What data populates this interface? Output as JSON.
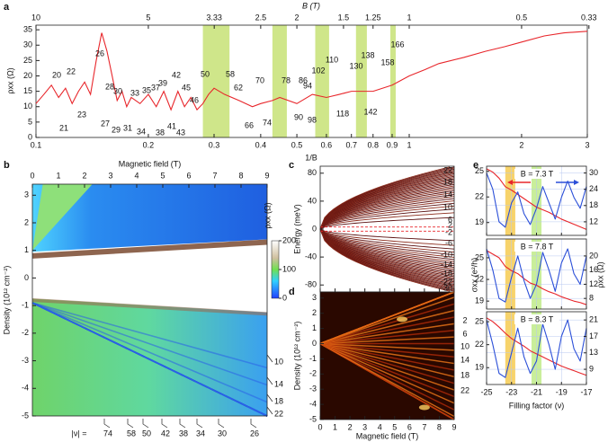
{
  "chart_data": [
    {
      "type": "line",
      "label": "a",
      "xlabel": "1/B",
      "x2label": "B (T)",
      "ylabel": "ρxx (Ω)",
      "log_x": true,
      "xlim": [
        0.1,
        3
      ],
      "xticks": [
        0.1,
        0.2,
        0.3,
        0.4,
        0.5,
        0.6,
        0.7,
        0.8,
        0.9,
        1,
        2,
        3
      ],
      "x2ticks": [
        10,
        5,
        3.33,
        2.5,
        2,
        1.5,
        1.25,
        1,
        0.5,
        0.33
      ],
      "ylim": [
        0,
        36.5
      ],
      "yticks": [
        0,
        5,
        10,
        15,
        20,
        25,
        30,
        35
      ],
      "band_color": "#cfe68a",
      "bands": [
        [
          0.28,
          0.33
        ],
        [
          0.43,
          0.47
        ],
        [
          0.56,
          0.61
        ],
        [
          0.72,
          0.77
        ],
        [
          0.89,
          0.92
        ]
      ],
      "x": [
        0.1,
        0.105,
        0.11,
        0.115,
        0.12,
        0.125,
        0.13,
        0.135,
        0.14,
        0.145,
        0.15,
        0.155,
        0.16,
        0.165,
        0.17,
        0.175,
        0.18,
        0.19,
        0.2,
        0.21,
        0.22,
        0.23,
        0.24,
        0.25,
        0.26,
        0.27,
        0.28,
        0.29,
        0.3,
        0.32,
        0.35,
        0.38,
        0.4,
        0.43,
        0.45,
        0.5,
        0.55,
        0.6,
        0.65,
        0.7,
        0.8,
        0.9,
        1,
        1.1,
        1.2,
        1.4,
        1.6,
        1.8,
        2,
        2.3,
        2.6,
        3
      ],
      "series": [
        {
          "color": "#e8262b",
          "values": [
            11,
            14,
            17,
            13,
            16,
            11,
            15,
            18,
            14,
            25,
            34,
            28,
            20,
            12,
            15,
            10,
            13,
            11,
            14,
            10,
            15,
            9,
            15,
            10,
            13,
            9,
            11,
            14,
            16,
            14,
            12,
            10,
            11,
            12,
            13,
            11,
            14,
            13,
            14,
            15,
            15,
            17,
            20,
            22,
            24,
            26,
            28,
            29.5,
            31,
            33,
            34,
            34.5
          ]
        }
      ],
      "annotations": [
        "20",
        "22",
        "26",
        "28",
        "30",
        "33",
        "35",
        "37",
        "39",
        "42",
        "45",
        "46",
        "50",
        "58",
        "62",
        "66",
        "70",
        "74",
        "78",
        "86",
        "90",
        "94",
        "98",
        "102",
        "110",
        "118",
        "130",
        "138",
        "142",
        "158",
        "166",
        "21",
        "23",
        "27",
        "29",
        "31",
        "34",
        "38",
        "41",
        "43"
      ]
    },
    {
      "type": "heatmap",
      "label": "b",
      "xlabel": "Magnetic field (T)",
      "ylabel": "Density (10¹² cm⁻²)",
      "xlim": [
        0,
        9
      ],
      "xticks": [
        0,
        1,
        2,
        3,
        4,
        5,
        6,
        7,
        8,
        9
      ],
      "ylim": [
        -5,
        3.4
      ],
      "yticks": [
        3,
        2,
        1,
        0,
        -1,
        -2,
        -3,
        -4,
        -5
      ],
      "colorbar_label": "ρxx (Ω)",
      "clim": [
        0,
        200
      ],
      "cticks": [
        0,
        100,
        200
      ],
      "right_labels": [
        "10",
        "14",
        "18",
        "22"
      ],
      "nu_prefix": "|ν| =",
      "nu_labels": [
        "74",
        "58",
        "50",
        "42",
        "38",
        "34",
        "30",
        "26"
      ]
    },
    {
      "type": "fan",
      "label": "c",
      "ylabel": "Energy (meV)",
      "xlim": [
        0,
        9
      ],
      "xticks": [
        0,
        1,
        2,
        3,
        4,
        5,
        6,
        7,
        8,
        9
      ],
      "ylim": [
        -90,
        90
      ],
      "yticks": [
        80,
        40,
        0,
        -40,
        -80
      ],
      "right_labels": [
        "22",
        "18",
        "14",
        "10",
        "6",
        "2",
        "-2",
        "-6",
        "-10",
        "-14",
        "-18",
        "-22",
        "-30"
      ]
    },
    {
      "type": "heatmap",
      "label": "d",
      "xlabel": "Magnetic field (T)",
      "ylabel": "Density (10¹² cm⁻²)",
      "xlim": [
        0,
        9
      ],
      "xticks": [
        0,
        1,
        2,
        3,
        4,
        5,
        6,
        7,
        8,
        9
      ],
      "ylim": [
        -5,
        3.4
      ],
      "yticks": [
        3,
        2,
        1,
        0,
        -1,
        -2,
        -3,
        -4,
        -5
      ],
      "right_labels": [
        "2",
        "6",
        "10",
        "14",
        "18",
        "22"
      ]
    },
    {
      "type": "multi",
      "label": "e",
      "xlabel": "Filling factor (ν)",
      "ylabel": "σxx (e²/h)",
      "y2label": "ρxx (Ω)",
      "xlim": [
        -25,
        -17
      ],
      "xticks": [
        -25,
        -23,
        -21,
        -19,
        -17
      ],
      "grid": true,
      "bands": [
        {
          "range": [
            -23.5,
            -22.7
          ],
          "color": "#f7d36b"
        },
        {
          "range": [
            -21.4,
            -20.6
          ],
          "color": "#c9ee9a"
        }
      ],
      "x": [
        -25,
        -24.5,
        -24,
        -23.5,
        -23,
        -22.5,
        -22,
        -21.5,
        -21,
        -20.5,
        -20,
        -19.5,
        -19,
        -18.5,
        -18,
        -17.5,
        -17
      ],
      "panels": [
        {
          "title": "B = 7.3 T",
          "ylim": [
            17.5,
            25.6
          ],
          "yticks": [
            25,
            22,
            19
          ],
          "y2lim": [
            7,
            32.5
          ],
          "y2ticks": [
            30,
            24,
            18,
            12
          ],
          "series": [
            {
              "color": "#e8262b",
              "values": [
                25.3,
                24.9,
                24.2,
                23.2,
                22.8,
                22.3,
                21.8,
                21.3,
                20.8,
                20.5,
                20.2,
                19.8,
                19.4,
                19.1,
                18.8,
                18.5,
                18.2
              ]
            },
            {
              "color": "#2b4fd8",
              "axis": "y2",
              "values": [
                30,
                24,
                12,
                10,
                19,
                23,
                15,
                11,
                17,
                25,
                19,
                13,
                21,
                27,
                21,
                17,
                25
              ]
            }
          ]
        },
        {
          "title": "B = 7.8 T",
          "ylim": [
            17.9,
            27.6
          ],
          "yticks": [
            25,
            22,
            19
          ],
          "y2lim": [
            5,
            24.8
          ],
          "y2ticks": [
            20,
            16,
            12,
            8
          ],
          "series": [
            {
              "color": "#e8262b",
              "values": [
                26,
                25.5,
                25,
                23.8,
                23.2,
                22.8,
                22.1,
                21.5,
                21.2,
                20.7,
                20.3,
                20,
                19.6,
                19.3,
                19,
                18.8,
                18.5
              ]
            },
            {
              "color": "#2b4fd8",
              "axis": "y2",
              "values": [
                22,
                16,
                8,
                7,
                14,
                20,
                13,
                8,
                12,
                21,
                16,
                10,
                18,
                22,
                15,
                12,
                20
              ]
            }
          ]
        },
        {
          "title": "B = 8.3 T",
          "ylim": [
            16.8,
            26.3
          ],
          "yticks": [
            25,
            22,
            19
          ],
          "y2lim": [
            5.3,
            23
          ],
          "y2ticks": [
            21,
            17,
            13,
            9
          ],
          "series": [
            {
              "color": "#e8262b",
              "values": [
                25.5,
                25,
                24.3,
                23.5,
                22.8,
                22.3,
                21.8,
                21.2,
                20.8,
                20.4,
                20,
                19.6,
                19.2,
                18.9,
                18.6,
                18.3,
                18
              ]
            },
            {
              "color": "#2b4fd8",
              "axis": "y2",
              "values": [
                21,
                15,
                8,
                7,
                13,
                19,
                12,
                8,
                11,
                20,
                15,
                9,
                17,
                21,
                14,
                11,
                19
              ]
            }
          ]
        }
      ]
    }
  ]
}
